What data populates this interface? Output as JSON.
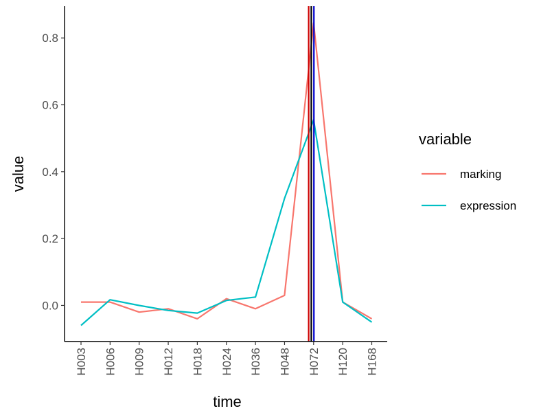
{
  "chart_data": {
    "type": "line",
    "xlabel": "time",
    "ylabel": "value",
    "categories": [
      "H003",
      "H006",
      "H009",
      "H012",
      "H018",
      "H024",
      "H036",
      "H048",
      "H072",
      "H120",
      "H168"
    ],
    "y_ticks": [
      0.0,
      0.2,
      0.4,
      0.6,
      0.8
    ],
    "y_tick_labels": [
      "0.0",
      "0.2",
      "0.4",
      "0.6",
      "0.8"
    ],
    "ylim": [
      -0.108,
      0.895
    ],
    "series": [
      {
        "name": "marking",
        "color": "#F8766D",
        "values": [
          0.01,
          0.01,
          -0.02,
          -0.01,
          -0.04,
          0.02,
          -0.01,
          0.03,
          0.845,
          0.01,
          -0.04
        ]
      },
      {
        "name": "expression",
        "color": "#00BFC4",
        "values": [
          -0.06,
          0.017,
          0.0,
          -0.015,
          -0.023,
          0.015,
          0.025,
          0.32,
          0.555,
          0.01,
          -0.05
        ]
      }
    ],
    "vertical_lines": [
      {
        "x": 7.83,
        "color": "#CC0000"
      },
      {
        "x": 7.92,
        "color": "#000000"
      },
      {
        "x": 8.01,
        "color": "#0000CC"
      }
    ],
    "legend": {
      "title": "variable",
      "placement": "right"
    },
    "grid": false
  }
}
